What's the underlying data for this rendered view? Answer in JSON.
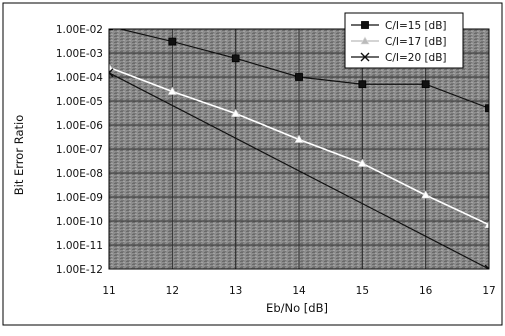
{
  "chart_data": {
    "type": "line",
    "xlabel": "Eb/No [dB]",
    "ylabel": "Bit Error Ratio",
    "scale_y": "log",
    "xlim": [
      11,
      17
    ],
    "ylim": [
      1e-12,
      0.01
    ],
    "grid": true,
    "legend_position": "top-right",
    "x_ticks": [
      "11",
      "12",
      "13",
      "14",
      "15",
      "16",
      "17"
    ],
    "y_ticks": [
      "1.00E-02",
      "1.00E-03",
      "1.00E-04",
      "1.00E-05",
      "1.00E-06",
      "1.00E-07",
      "1.00E-08",
      "1.00E-09",
      "1.00E-10",
      "1.00E-11",
      "1.00E-12"
    ],
    "series": [
      {
        "name": "C/I=15 [dB]",
        "marker": "square",
        "color": "#111111",
        "x": [
          11,
          12,
          13,
          14,
          15,
          16,
          17
        ],
        "y": [
          0.013,
          0.003,
          0.0006,
          0.0001,
          5e-05,
          5e-05,
          5e-06
        ]
      },
      {
        "name": "C/I=17 [dB]",
        "marker": "triangle",
        "color": "#ffffff",
        "x": [
          11,
          12,
          13,
          14,
          15,
          16,
          17
        ],
        "y": [
          0.00025,
          2.5e-05,
          3e-06,
          2.5e-07,
          2.5e-08,
          1.2e-09,
          7e-11
        ]
      },
      {
        "name": "C/I=20 [dB]",
        "marker": "x",
        "color": "#111111",
        "x": [
          11,
          17
        ],
        "y": [
          0.00015,
          1e-12
        ]
      }
    ],
    "colors": {
      "plot_background": "#8a8a8a",
      "grid": "#2a2a2a",
      "frame": "#000000",
      "legend_background": "#ffffff"
    }
  }
}
